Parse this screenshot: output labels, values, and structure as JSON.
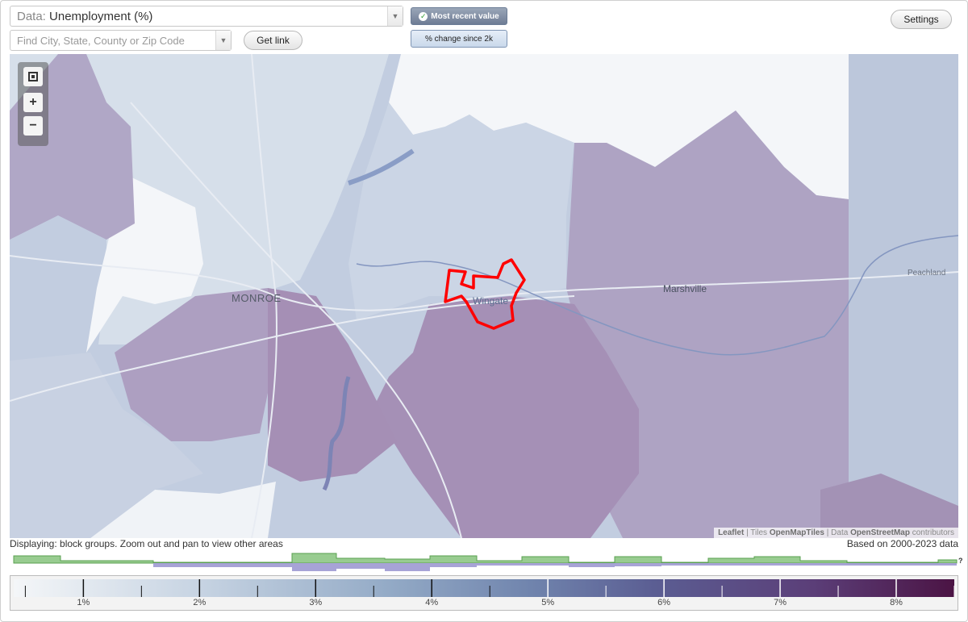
{
  "data_select": {
    "prefix": "Data:",
    "value": "Unemployment (%)"
  },
  "search": {
    "placeholder": "Find City, State, County or Zip Code"
  },
  "buttons": {
    "get_link": "Get link",
    "settings": "Settings"
  },
  "toggles": {
    "most_recent": "Most recent value",
    "change_since": "% change since 2k",
    "active": "most_recent"
  },
  "map": {
    "places": {
      "monroe": "MONROE",
      "wingate": "Wingate",
      "marshville": "Marshville",
      "peachland": "Peachland"
    },
    "highlight_color": "#ff0000",
    "attribution": {
      "leaflet": "Leaflet",
      "tiles_prefix": "Tiles",
      "tiles": "OpenMapTiles",
      "data_prefix": "Data",
      "data": "OpenStreetMap",
      "contributors": "contributors"
    }
  },
  "status": {
    "displaying": "Displaying: block groups. Zoom out and pan to view other areas",
    "based_on": "Based on 2000-2023 data"
  },
  "legend": {
    "labels": [
      "1%",
      "2%",
      "3%",
      "4%",
      "5%",
      "6%",
      "7%",
      "8%"
    ],
    "min": 0.4,
    "max": 8.5,
    "help": "?"
  },
  "colors": {
    "low": "#f4f6f8",
    "mid": "#7084ad",
    "high": "#4b1444"
  }
}
